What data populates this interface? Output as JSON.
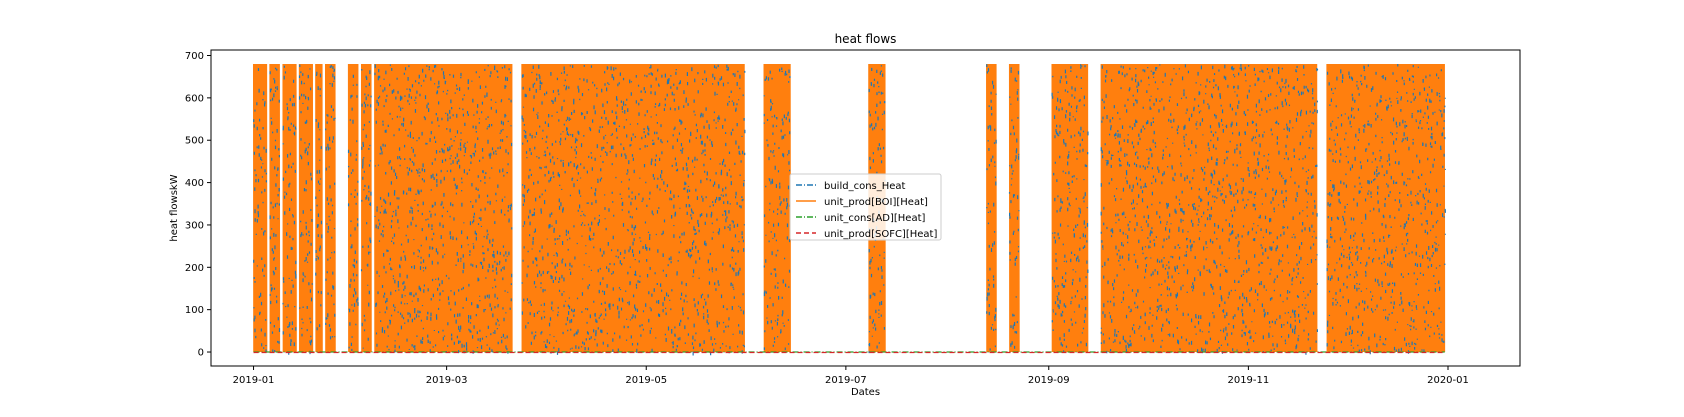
{
  "chart_data": {
    "type": "line",
    "title": "heat flows",
    "xlabel": "Dates",
    "ylabel": "heat flowskW",
    "xlim": [
      "2018-12-19",
      "2020-01-23"
    ],
    "ylim": [
      -33,
      713
    ],
    "x_ticks": [
      "2019-01",
      "2019-03",
      "2019-05",
      "2019-07",
      "2019-09",
      "2019-11",
      "2020-01"
    ],
    "y_ticks": [
      0,
      100,
      200,
      300,
      400,
      500,
      600,
      700
    ],
    "grid": false,
    "legend_position": "center",
    "data_range": [
      "2019-01-01",
      "2019-12-31"
    ],
    "max_level": 680,
    "series": [
      {
        "name": "build_cons_Heat",
        "color": "#1f77b4",
        "style": "dashdot",
        "active_periods": [
          [
            "2019-01-01",
            "2019-01-05"
          ],
          [
            "2019-01-06",
            "2019-01-09"
          ],
          [
            "2019-01-10",
            "2019-01-14"
          ],
          [
            "2019-01-15",
            "2019-01-19"
          ],
          [
            "2019-01-20",
            "2019-01-22"
          ],
          [
            "2019-01-23",
            "2019-01-26"
          ],
          [
            "2019-01-30",
            "2019-02-02"
          ],
          [
            "2019-02-03",
            "2019-02-06"
          ],
          [
            "2019-02-07",
            "2019-03-21"
          ],
          [
            "2019-03-24",
            "2019-05-31"
          ],
          [
            "2019-06-06",
            "2019-06-14"
          ],
          [
            "2019-07-08",
            "2019-07-13"
          ],
          [
            "2019-08-13",
            "2019-08-16"
          ],
          [
            "2019-08-20",
            "2019-08-23"
          ],
          [
            "2019-09-02",
            "2019-09-13"
          ],
          [
            "2019-09-17",
            "2019-11-22"
          ],
          [
            "2019-11-25",
            "2019-12-31"
          ]
        ]
      },
      {
        "name": "unit_prod[BOI][Heat]",
        "color": "#ff7f0e",
        "style": "solid",
        "active_periods": [
          [
            "2019-01-01",
            "2019-01-05"
          ],
          [
            "2019-01-06",
            "2019-01-09"
          ],
          [
            "2019-01-10",
            "2019-01-14"
          ],
          [
            "2019-01-15",
            "2019-01-19"
          ],
          [
            "2019-01-20",
            "2019-01-22"
          ],
          [
            "2019-01-23",
            "2019-01-26"
          ],
          [
            "2019-01-30",
            "2019-02-02"
          ],
          [
            "2019-02-03",
            "2019-02-06"
          ],
          [
            "2019-02-07",
            "2019-03-21"
          ],
          [
            "2019-03-24",
            "2019-05-31"
          ],
          [
            "2019-06-06",
            "2019-06-14"
          ],
          [
            "2019-07-08",
            "2019-07-13"
          ],
          [
            "2019-08-13",
            "2019-08-16"
          ],
          [
            "2019-08-20",
            "2019-08-23"
          ],
          [
            "2019-09-02",
            "2019-09-13"
          ],
          [
            "2019-09-17",
            "2019-11-22"
          ],
          [
            "2019-11-25",
            "2019-12-31"
          ]
        ]
      },
      {
        "name": "unit_cons[AD][Heat]",
        "color": "#2ca02c",
        "style": "dashdot",
        "constant_value": 0
      },
      {
        "name": "unit_prod[SOFC][Heat]",
        "color": "#d62728",
        "style": "dashed",
        "constant_value": 0
      }
    ]
  }
}
